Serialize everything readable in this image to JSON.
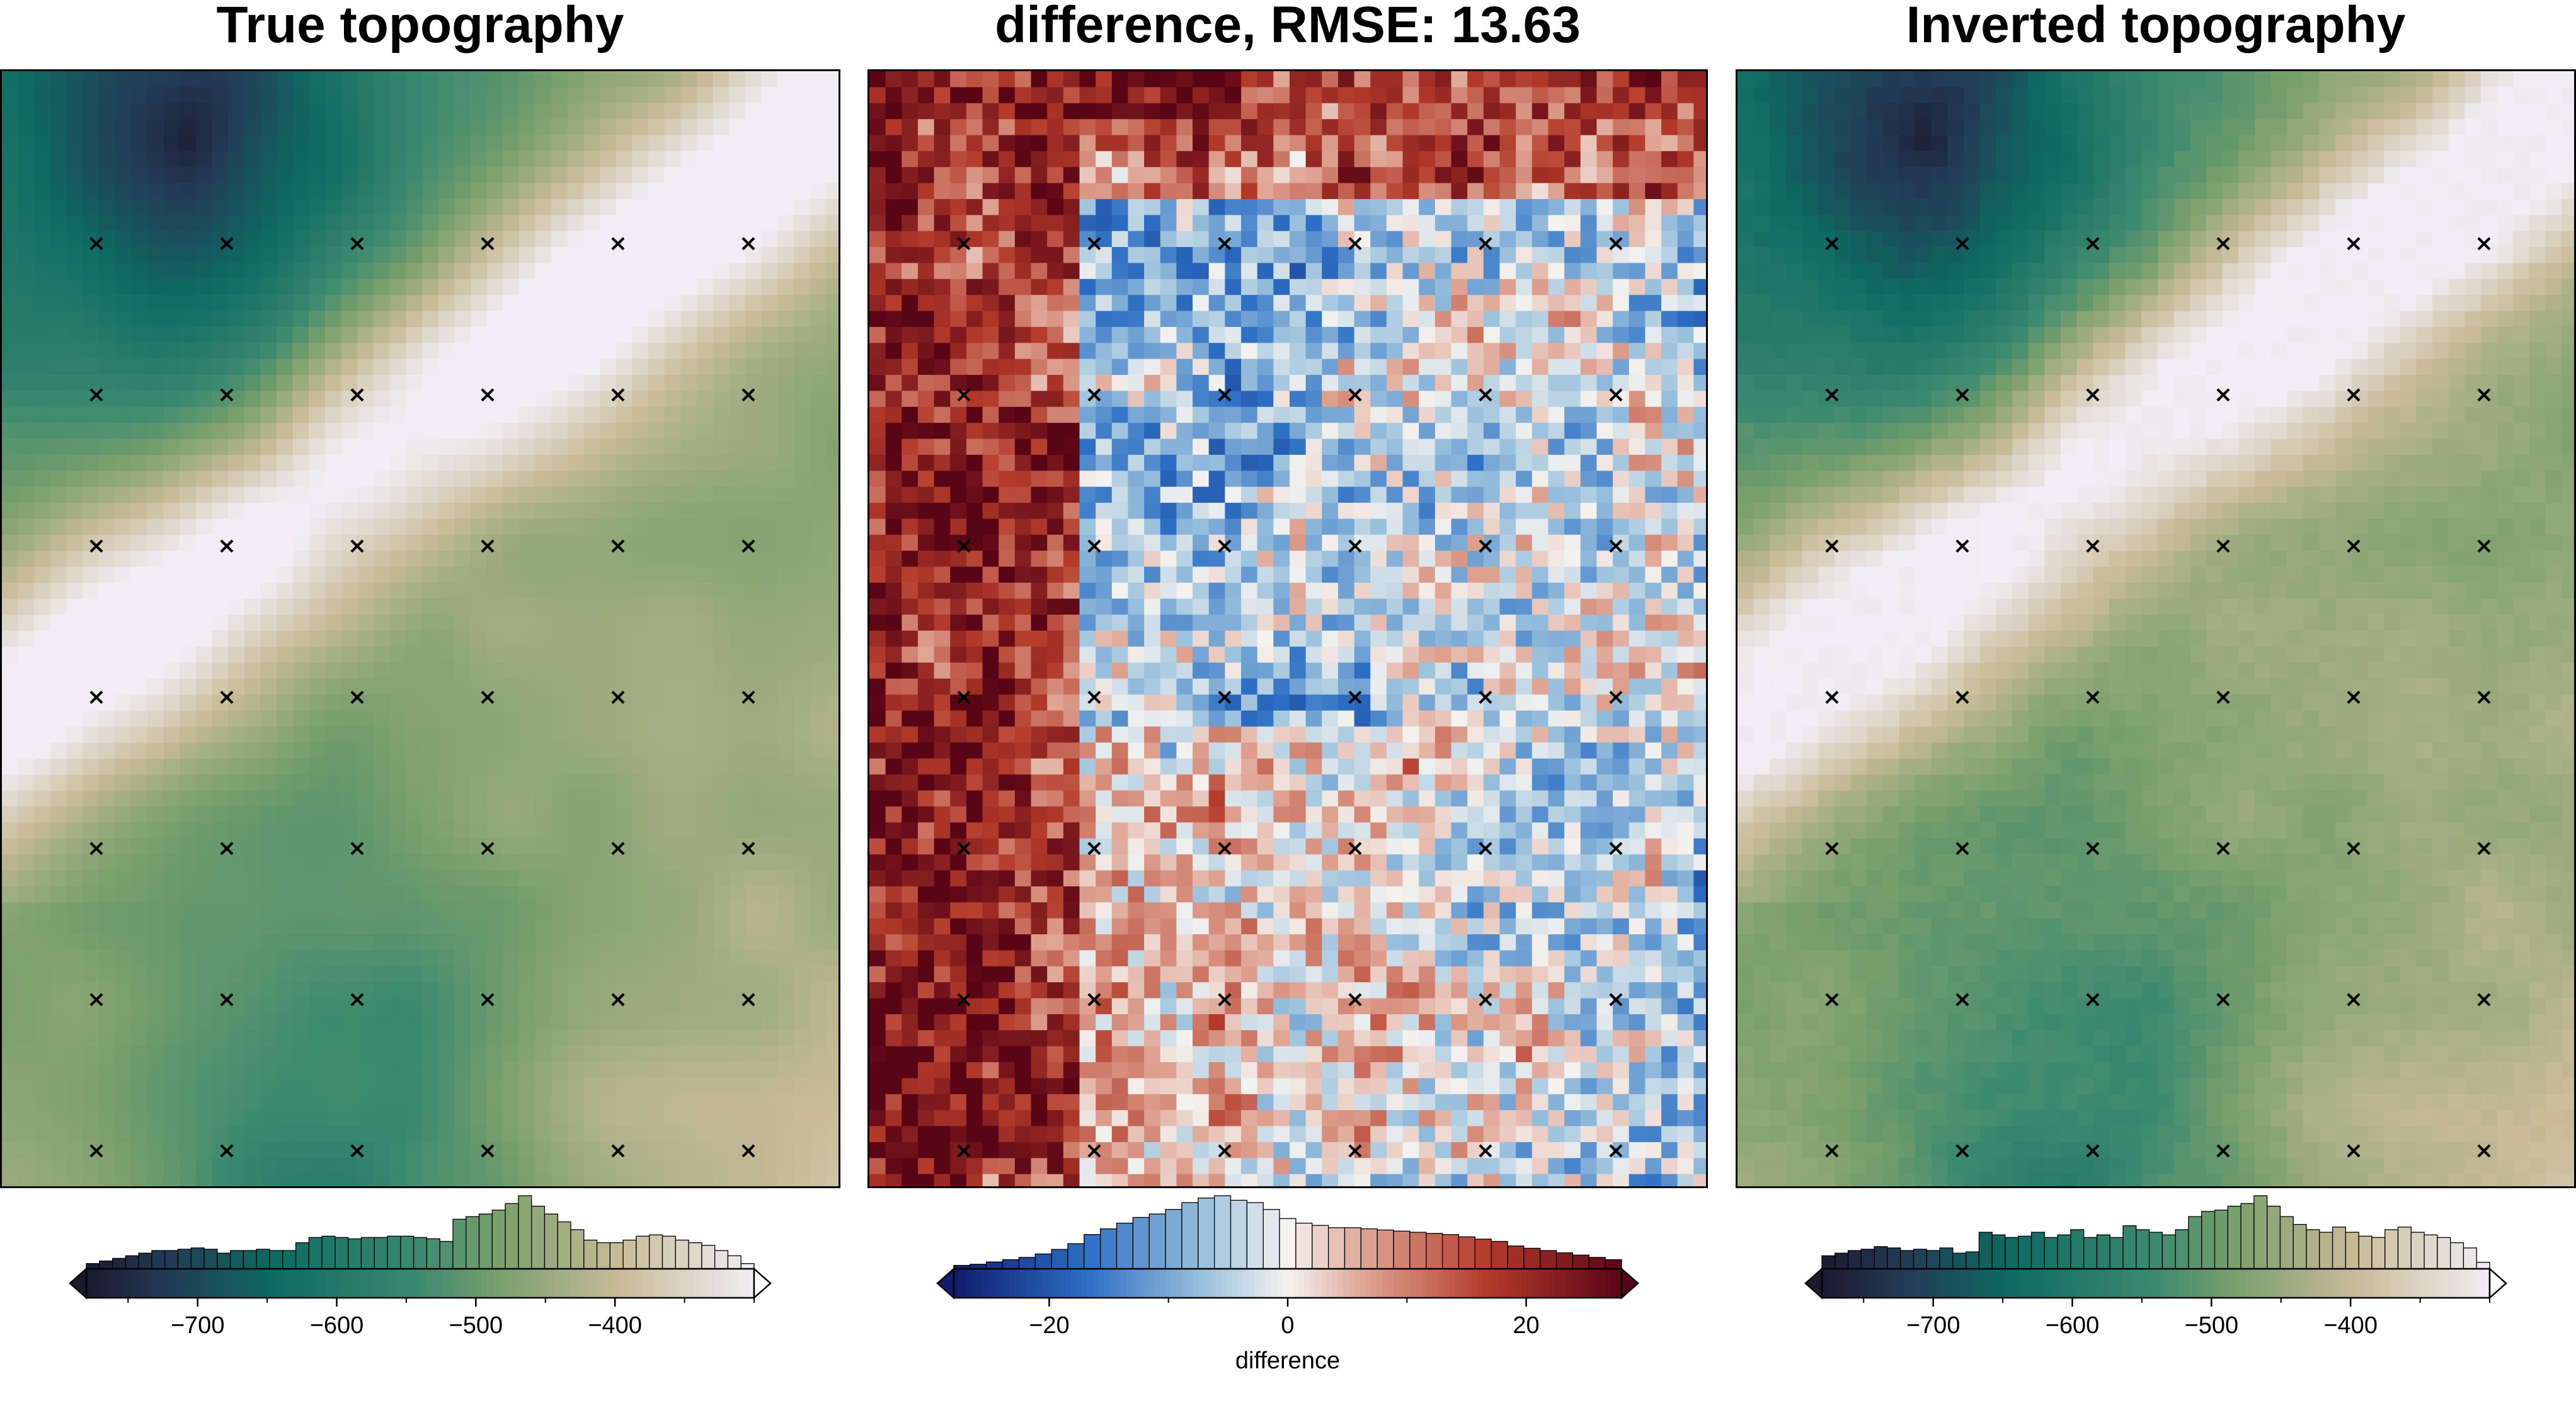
{
  "panels": [
    {
      "title": "True topography",
      "cmap": "topo",
      "colorbar": {
        "vmin": -780,
        "vmax": -300,
        "ticks": [
          -700,
          -600,
          -500,
          -400
        ],
        "label": "",
        "histogram": [
          4,
          6,
          8,
          10,
          12,
          14,
          14,
          15,
          16,
          15,
          12,
          14,
          14,
          15,
          14,
          14,
          20,
          24,
          25,
          24,
          23,
          24,
          24,
          25,
          25,
          24,
          23,
          21,
          38,
          40,
          42,
          45,
          50,
          56,
          48,
          42,
          36,
          30,
          22,
          20,
          20,
          22,
          25,
          26,
          25,
          22,
          20,
          18,
          14,
          10,
          4
        ]
      }
    },
    {
      "title": "difference, RMSE: 13.63",
      "cmap": "diff",
      "colorbar": {
        "vmin": -28,
        "vmax": 28,
        "ticks": [
          -20,
          0,
          20
        ],
        "label": "difference",
        "histogram": [
          3,
          4,
          6,
          8,
          10,
          13,
          17,
          22,
          30,
          35,
          40,
          45,
          48,
          52,
          58,
          62,
          64,
          60,
          58,
          52,
          44,
          40,
          38,
          36,
          36,
          35,
          34,
          33,
          32,
          31,
          30,
          28,
          26,
          24,
          20,
          18,
          16,
          14,
          12,
          10,
          8
        ]
      }
    },
    {
      "title": "Inverted topography",
      "cmap": "topo",
      "colorbar": {
        "vmin": -780,
        "vmax": -300,
        "ticks": [
          -700,
          -600,
          -500,
          -400
        ],
        "label": "",
        "histogram": [
          10,
          12,
          14,
          15,
          17,
          16,
          14,
          15,
          14,
          16,
          12,
          13,
          28,
          26,
          24,
          25,
          28,
          24,
          26,
          30,
          24,
          26,
          24,
          33,
          30,
          28,
          26,
          30,
          40,
          44,
          45,
          48,
          50,
          56,
          48,
          40,
          34,
          30,
          28,
          32,
          28,
          25,
          24,
          30,
          32,
          28,
          26,
          24,
          20,
          16,
          5
        ]
      }
    }
  ],
  "control_points": {
    "columns": 6,
    "rows": 7,
    "marker": "×"
  },
  "chart_data": [
    {
      "type": "heatmap",
      "title": "True topography",
      "colorbar_range": [
        -780,
        -300
      ],
      "colorbar_ticks": [
        -700,
        -600,
        -500,
        -400
      ]
    },
    {
      "type": "heatmap",
      "title": "difference, RMSE: 13.63",
      "colorbar_range": [
        -28,
        28
      ],
      "colorbar_ticks": [
        -20,
        0,
        20
      ],
      "colorbar_label": "difference"
    },
    {
      "type": "heatmap",
      "title": "Inverted topography",
      "colorbar_range": [
        -780,
        -300
      ],
      "colorbar_ticks": [
        -700,
        -600,
        -500,
        -400
      ]
    }
  ],
  "colors": {
    "topo_low": "#1b1a2f",
    "topo_mid": "#0e6a62",
    "topo_green": "#7aa06c",
    "topo_high": "#f0eef4",
    "diff_low": "#101c6c",
    "diff_mid": "#f4f2f0",
    "diff_high": "#5a0516"
  }
}
